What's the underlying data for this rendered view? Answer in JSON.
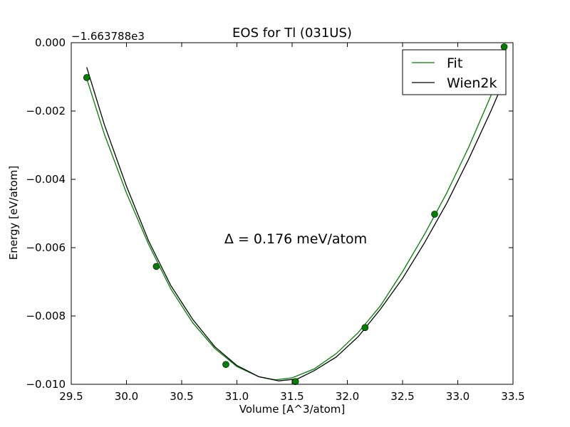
{
  "chart_data": {
    "type": "line",
    "title": "EOS for Tl (031US)",
    "xlabel": "Volume [A^3/atom]",
    "ylabel": "Energy [eV/atom]",
    "y_offset_label": "−1.663788e3",
    "xlim": [
      29.5,
      33.5
    ],
    "ylim": [
      -0.01,
      0.0
    ],
    "x_ticks": [
      29.5,
      30.0,
      30.5,
      31.0,
      31.5,
      32.0,
      32.5,
      33.0,
      33.5
    ],
    "x_tick_labels": [
      "29.5",
      "30.0",
      "30.5",
      "31.0",
      "31.5",
      "32.0",
      "32.5",
      "33.0",
      "33.5"
    ],
    "y_ticks": [
      0.0,
      -0.002,
      -0.004,
      -0.006,
      -0.008,
      -0.01
    ],
    "y_tick_labels": [
      "0.000",
      "−0.002",
      "−0.004",
      "−0.006",
      "−0.008",
      "−0.010"
    ],
    "annotation": "Δ = 0.176 meV/atom",
    "legend": {
      "placement": "top-right",
      "entries": [
        "Fit",
        "Wien2k"
      ]
    },
    "series": [
      {
        "name": "Fit",
        "kind": "line",
        "color": "#008000",
        "x": [
          29.64,
          29.8,
          30.0,
          30.2,
          30.4,
          30.6,
          30.8,
          31.0,
          31.2,
          31.35,
          31.5,
          31.7,
          31.9,
          32.1,
          32.3,
          32.5,
          32.7,
          32.9,
          33.1,
          33.3,
          33.42
        ],
        "y": [
          -0.00105,
          -0.00268,
          -0.0044,
          -0.0059,
          -0.0072,
          -0.0082,
          -0.00895,
          -0.00948,
          -0.00978,
          -0.00987,
          -0.00981,
          -0.00955,
          -0.0091,
          -0.00848,
          -0.0077,
          -0.0067,
          -0.0056,
          -0.0044,
          -0.00305,
          -0.00155,
          -0.0001
        ]
      },
      {
        "name": "Wien2k",
        "kind": "line",
        "color": "#000000",
        "x": [
          29.64,
          29.8,
          30.0,
          30.2,
          30.4,
          30.6,
          30.8,
          31.0,
          31.2,
          31.38,
          31.55,
          31.7,
          31.9,
          32.1,
          32.3,
          32.5,
          32.7,
          32.9,
          33.1,
          33.3,
          33.42
        ],
        "y": [
          -0.00072,
          -0.0024,
          -0.0042,
          -0.0058,
          -0.0071,
          -0.0081,
          -0.0089,
          -0.00945,
          -0.00978,
          -0.0099,
          -0.00984,
          -0.0096,
          -0.0092,
          -0.0086,
          -0.0078,
          -0.0069,
          -0.00585,
          -0.0047,
          -0.0034,
          -0.002,
          -0.0011
        ]
      },
      {
        "name": "",
        "kind": "points",
        "color": "#008000",
        "x": [
          29.64,
          30.27,
          30.9,
          31.53,
          32.16,
          32.79,
          33.42
        ],
        "y": [
          -0.00102,
          -0.00655,
          -0.00942,
          -0.00992,
          -0.00834,
          -0.00502,
          -0.00012
        ]
      }
    ]
  }
}
